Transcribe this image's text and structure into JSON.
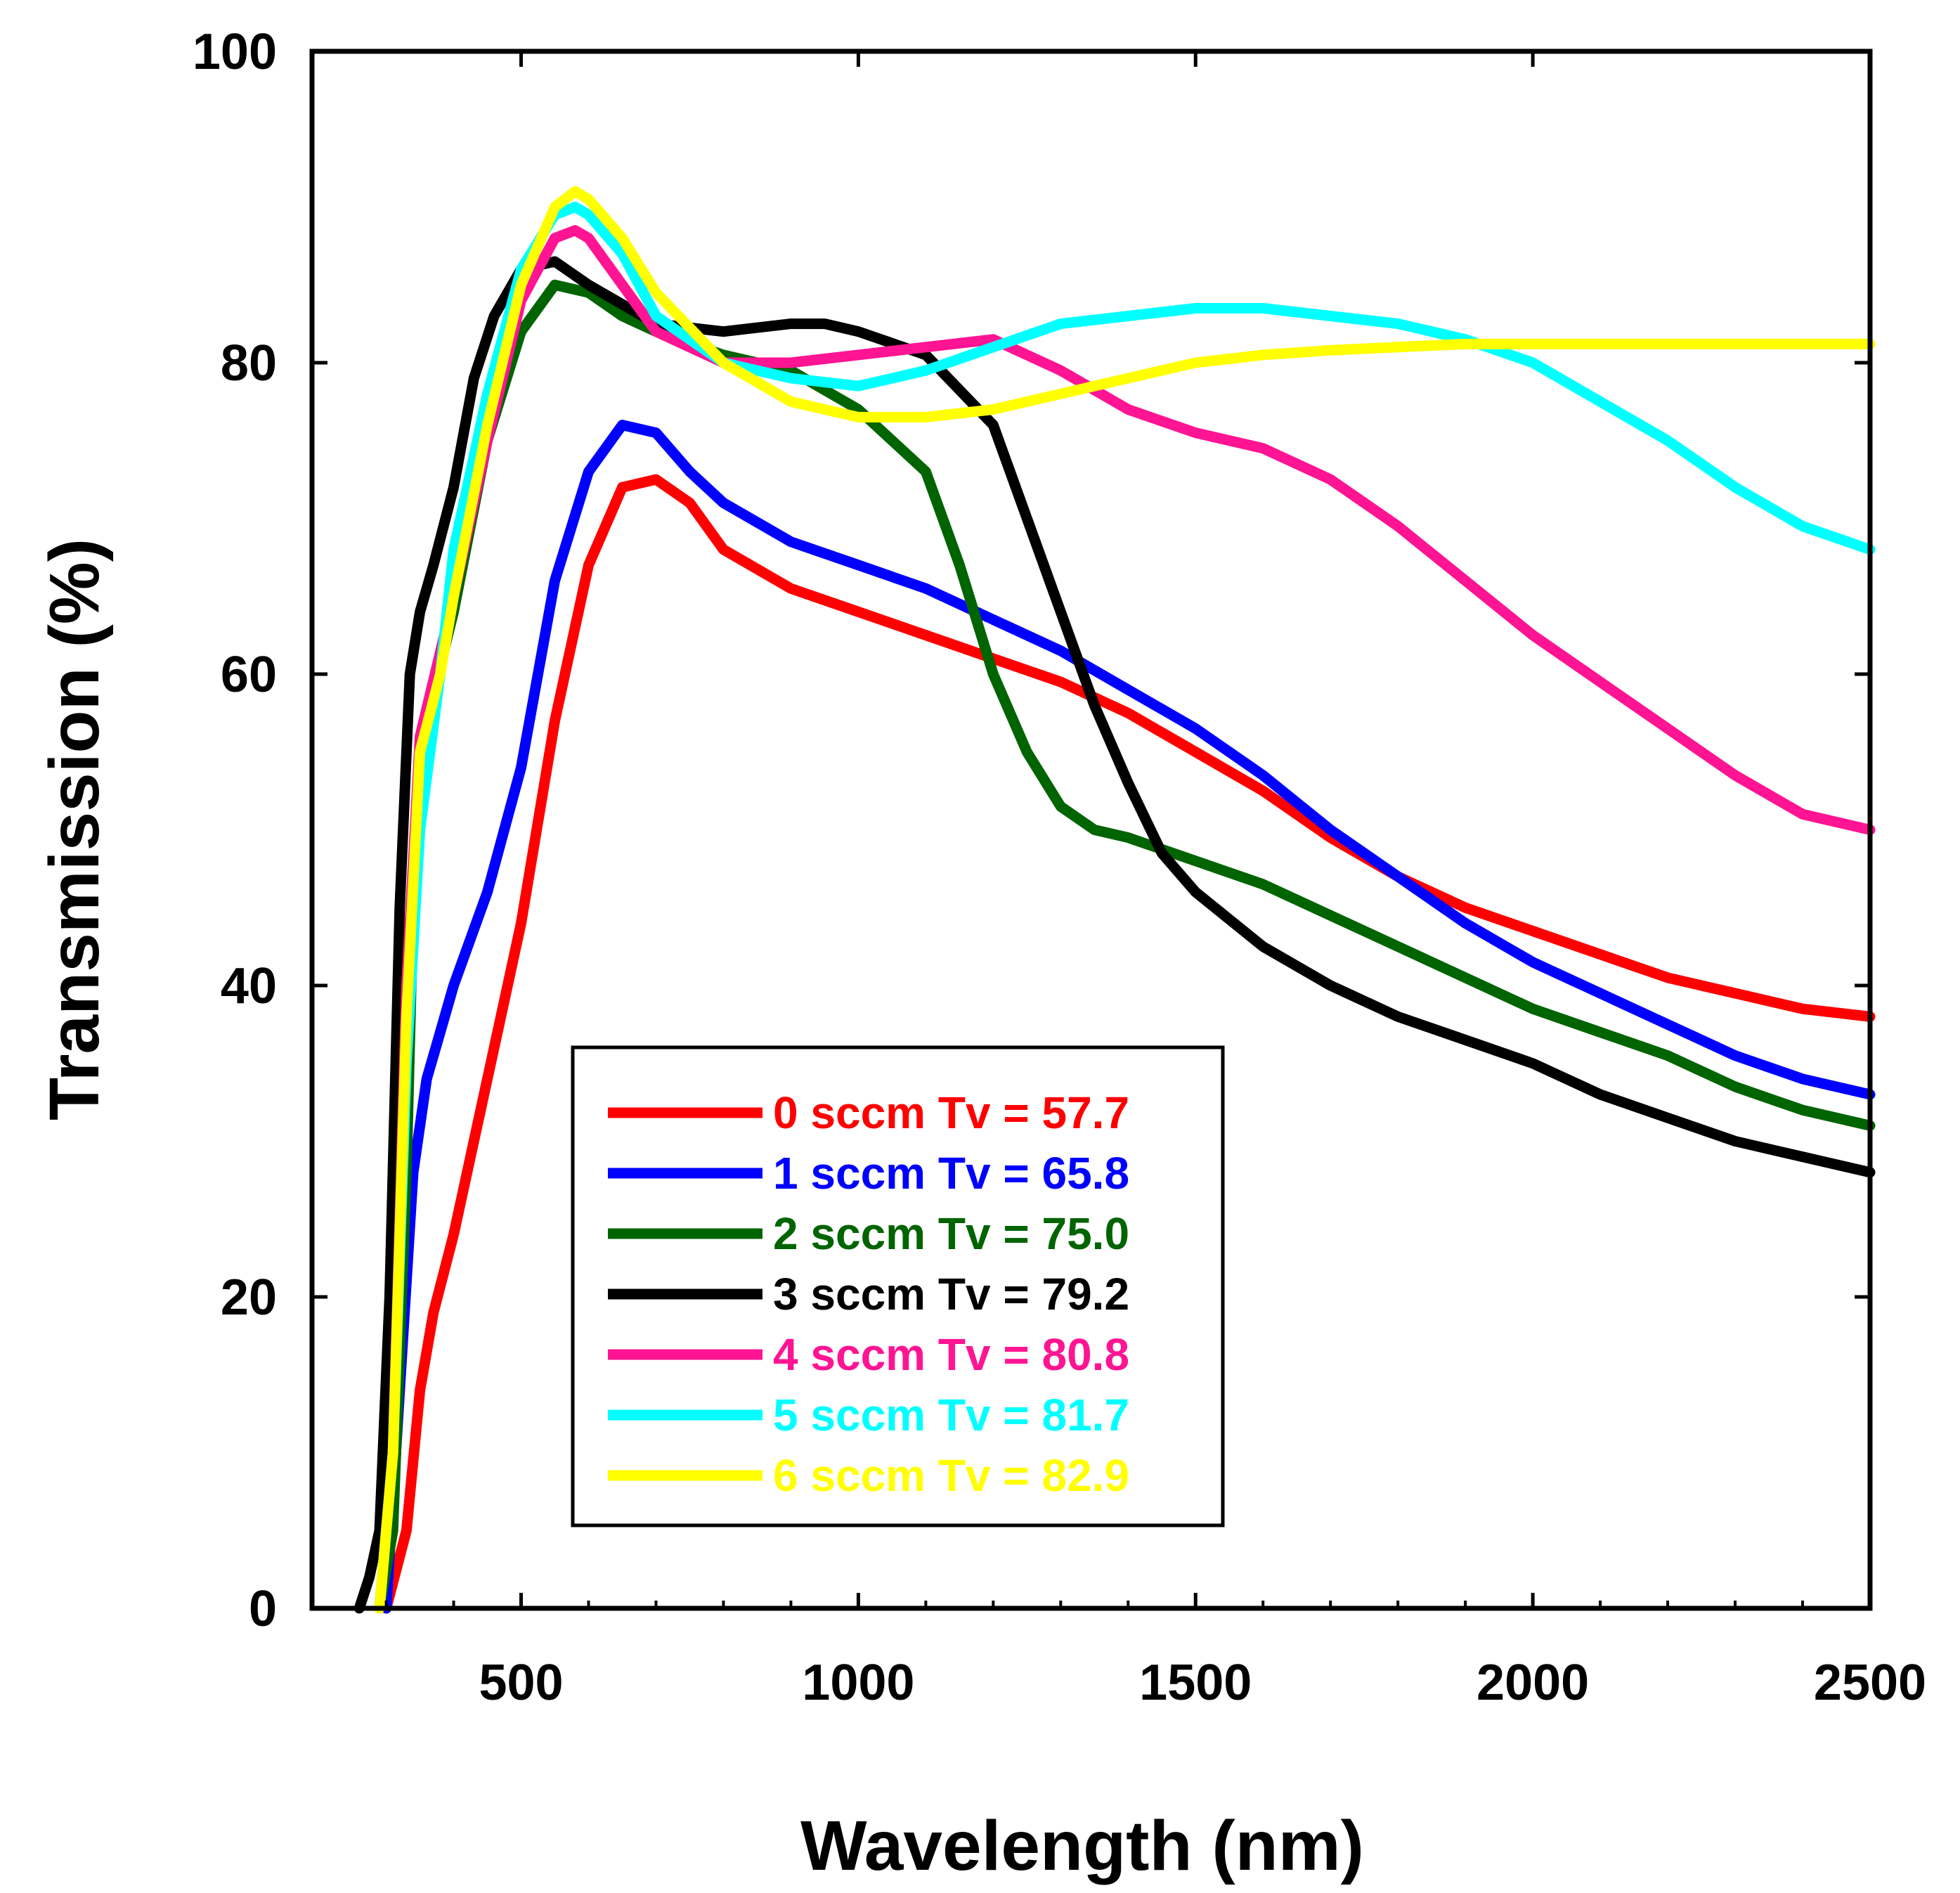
{
  "chart_data": {
    "type": "line",
    "title": "",
    "xlabel": "Wavelength (nm)",
    "ylabel": "Transmission (%)",
    "xlim": [
      190,
      2500
    ],
    "ylim": [
      0,
      100
    ],
    "x_ticks": [
      500,
      1000,
      1500,
      2000,
      2500
    ],
    "y_ticks": [
      0,
      20,
      40,
      60,
      80,
      100
    ],
    "grid": false,
    "legend_position": "lower-center",
    "series": [
      {
        "name": "0 sccm",
        "label": "0 sccm Tv = 57.7",
        "color": "#ff0000",
        "x": [
          300,
          330,
          350,
          370,
          400,
          430,
          460,
          500,
          550,
          600,
          650,
          700,
          750,
          800,
          900,
          1000,
          1100,
          1200,
          1300,
          1400,
          1500,
          1600,
          1700,
          1800,
          1900,
          2000,
          2100,
          2200,
          2300,
          2400,
          2500
        ],
        "y": [
          0,
          5,
          14,
          19,
          24,
          30,
          36,
          44,
          57,
          67,
          72,
          72.5,
          71,
          68,
          65.5,
          64,
          62.5,
          61,
          59.5,
          57.5,
          55,
          52.5,
          49.5,
          47,
          45,
          43.5,
          42,
          40.5,
          39.5,
          38.5,
          38
        ]
      },
      {
        "name": "1 sccm",
        "label": "1 sccm Tv = 65.8",
        "color": "#0000ff",
        "x": [
          300,
          320,
          340,
          360,
          380,
          400,
          450,
          500,
          550,
          600,
          650,
          700,
          750,
          800,
          900,
          1000,
          1100,
          1200,
          1300,
          1400,
          1500,
          1600,
          1700,
          1800,
          1900,
          2000,
          2100,
          2200,
          2300,
          2400,
          2500
        ],
        "y": [
          0,
          14,
          28,
          34,
          37,
          40,
          46,
          54,
          66,
          73,
          76,
          75.5,
          73,
          71,
          68.5,
          67,
          65.5,
          63.5,
          61.5,
          59,
          56.5,
          53.5,
          50,
          47,
          44,
          41.5,
          39.5,
          37.5,
          35.5,
          34,
          33
        ]
      },
      {
        "name": "2 sccm",
        "label": "2 sccm Tv = 75.0",
        "color": "#006400",
        "x": [
          290,
          310,
          330,
          340,
          360,
          400,
          450,
          500,
          550,
          600,
          650,
          700,
          800,
          900,
          1000,
          1100,
          1150,
          1200,
          1250,
          1300,
          1350,
          1400,
          1500,
          1600,
          1700,
          1800,
          1900,
          2000,
          2100,
          2200,
          2300,
          2400,
          2500
        ],
        "y": [
          0,
          5,
          28,
          45,
          57,
          64,
          75,
          82,
          85,
          84.5,
          83,
          82,
          80.5,
          79.5,
          77,
          73,
          67,
          60,
          55,
          51.5,
          50,
          49.5,
          48,
          46.5,
          44.5,
          42.5,
          40.5,
          38.5,
          37,
          35.5,
          33.5,
          32,
          31
        ]
      },
      {
        "name": "3 sccm",
        "label": "3 sccm Tv = 79.2",
        "color": "#000000",
        "x": [
          260,
          275,
          290,
          305,
          320,
          335,
          350,
          370,
          400,
          430,
          460,
          500,
          550,
          600,
          700,
          800,
          900,
          950,
          1000,
          1100,
          1200,
          1250,
          1300,
          1350,
          1400,
          1450,
          1500,
          1600,
          1700,
          1800,
          1900,
          2000,
          2100,
          2200,
          2300,
          2400,
          2500
        ],
        "y": [
          0,
          2,
          5,
          20,
          45,
          60,
          64,
          67,
          72,
          79,
          83,
          86,
          86.5,
          85,
          82.5,
          82,
          82.5,
          82.5,
          82,
          80.5,
          76,
          70,
          64,
          58,
          53,
          48.5,
          46,
          42.5,
          40,
          38,
          36.5,
          35,
          33,
          31.5,
          30,
          29,
          28
        ]
      },
      {
        "name": "4 sccm",
        "label": "4 sccm Tv = 80.8",
        "color": "#ff1493",
        "x": [
          290,
          310,
          330,
          350,
          400,
          450,
          500,
          550,
          580,
          600,
          700,
          800,
          900,
          1000,
          1100,
          1200,
          1300,
          1400,
          1500,
          1600,
          1700,
          1800,
          1900,
          2000,
          2100,
          2200,
          2300,
          2400,
          2500
        ],
        "y": [
          0,
          10,
          40,
          56,
          65,
          75,
          84,
          88,
          88.5,
          88,
          82,
          80,
          80,
          80.5,
          81,
          81.5,
          79.5,
          77,
          75.5,
          74.5,
          72.5,
          69.5,
          66,
          62.5,
          59.5,
          56.5,
          53.5,
          51,
          50
        ]
      },
      {
        "name": "5 sccm",
        "label": "5 sccm Tv = 81.7",
        "color": "#00ffff",
        "x": [
          290,
          310,
          330,
          350,
          380,
          400,
          450,
          500,
          550,
          580,
          600,
          650,
          700,
          800,
          900,
          1000,
          1100,
          1200,
          1300,
          1400,
          1500,
          1600,
          1700,
          1800,
          1900,
          2000,
          2100,
          2200,
          2300,
          2400,
          2500
        ],
        "y": [
          0,
          10,
          35,
          50,
          60,
          68,
          78,
          86,
          89.5,
          90,
          89.5,
          87,
          83,
          80,
          79,
          78.5,
          79.5,
          81,
          82.5,
          83,
          83.5,
          83.5,
          83,
          82.5,
          81.5,
          80,
          77.5,
          75,
          72,
          69.5,
          68
        ]
      },
      {
        "name": "6 sccm",
        "label": "6 sccm Tv = 82.9",
        "color": "#ffff00",
        "x": [
          290,
          310,
          330,
          350,
          380,
          400,
          450,
          500,
          550,
          580,
          600,
          650,
          700,
          800,
          900,
          1000,
          1100,
          1200,
          1300,
          1400,
          1500,
          1600,
          1700,
          1800,
          1900,
          2000,
          2100,
          2200,
          2300,
          2400,
          2500
        ],
        "y": [
          0,
          10,
          38,
          55,
          60,
          65,
          76,
          85,
          90,
          91,
          90.5,
          88,
          84.5,
          80,
          77.5,
          76.5,
          76.5,
          77,
          78,
          79,
          80,
          80.5,
          80.8,
          81,
          81.2,
          81.2,
          81.2,
          81.2,
          81.2,
          81.2,
          81.2
        ]
      }
    ]
  }
}
